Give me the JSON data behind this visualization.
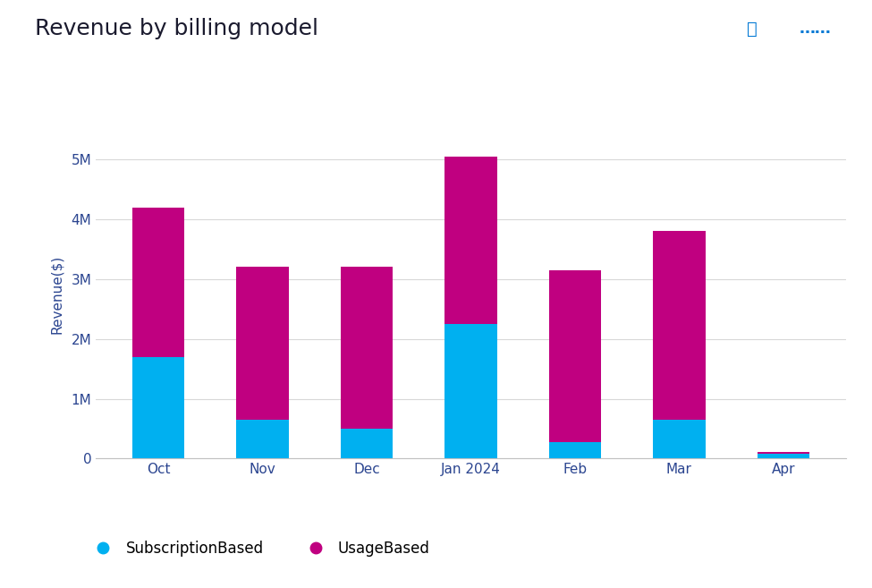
{
  "title": "Revenue by billing model",
  "ylabel": "Revenue($)",
  "categories": [
    "Oct",
    "Nov",
    "Dec",
    "Jan 2024",
    "Feb",
    "Mar",
    "Apr"
  ],
  "subscription_based": [
    1700000,
    650000,
    500000,
    2250000,
    280000,
    650000,
    80000
  ],
  "usage_based": [
    2500000,
    2550000,
    2700000,
    2800000,
    2870000,
    3150000,
    30000
  ],
  "color_subscription": "#00B0F0",
  "color_usage": "#C00080",
  "background_color": "#FFFFFF",
  "ylim": [
    0,
    5500000
  ],
  "yticks": [
    0,
    1000000,
    2000000,
    3000000,
    4000000,
    5000000
  ],
  "legend_subscription": "SubscriptionBased",
  "legend_usage": "UsageBased",
  "title_fontsize": 18,
  "axis_label_fontsize": 11,
  "tick_fontsize": 11,
  "bar_width": 0.5,
  "title_color": "#1a1a2e",
  "axis_color": "#2b4590",
  "tick_color": "#2b4590",
  "grid_color": "#D8D8D8",
  "spine_color": "#C0C0C0"
}
